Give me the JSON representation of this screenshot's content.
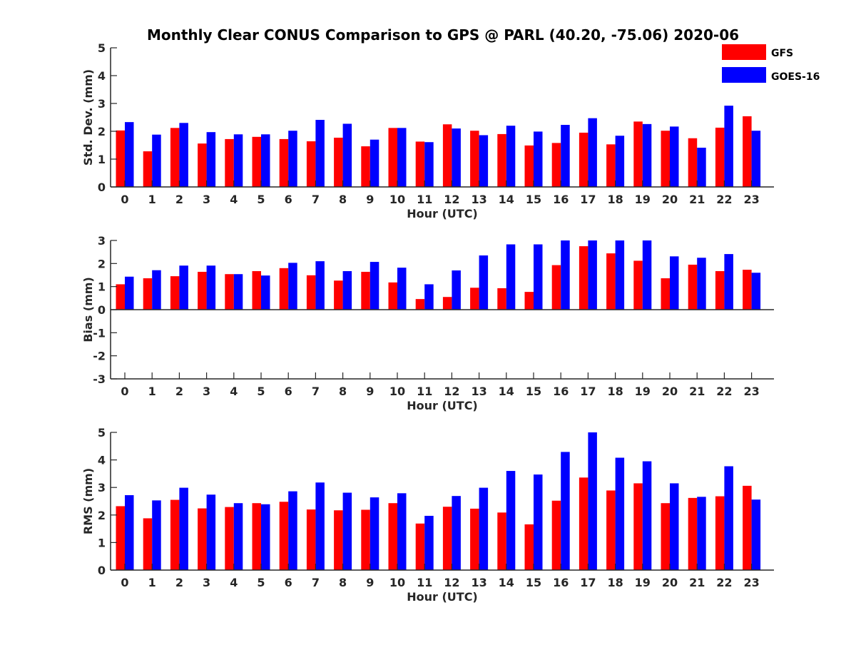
{
  "figure": {
    "title": "Monthly Clear CONUS Comparison to GPS @ PARL (40.20, -75.06) 2020-06"
  },
  "legend": {
    "placement": "top-right",
    "entries": [
      {
        "name": "GFS",
        "color": "#ff0000"
      },
      {
        "name": "GOES-16",
        "color": "#0000ff"
      }
    ]
  },
  "chart_data": [
    {
      "type": "bar",
      "xlabel": "Hour (UTC)",
      "ylabel": "Std. Dev. (mm)",
      "ylim": [
        0,
        5
      ],
      "yticks": [
        0,
        1,
        2,
        3,
        4,
        5
      ],
      "categories": [
        "0",
        "1",
        "2",
        "3",
        "4",
        "5",
        "6",
        "7",
        "8",
        "9",
        "10",
        "11",
        "12",
        "13",
        "14",
        "15",
        "16",
        "17",
        "18",
        "19",
        "20",
        "21",
        "22",
        "23"
      ],
      "series": [
        {
          "name": "GFS",
          "color": "#ff0000",
          "values": [
            2.03,
            1.28,
            2.12,
            1.56,
            1.72,
            1.8,
            1.72,
            1.64,
            1.77,
            1.46,
            2.12,
            1.63,
            2.25,
            2.02,
            1.9,
            1.49,
            1.58,
            1.95,
            1.53,
            2.35,
            2.02,
            1.75,
            2.13,
            2.54
          ]
        },
        {
          "name": "GOES-16",
          "color": "#0000ff",
          "values": [
            2.33,
            1.88,
            2.3,
            1.97,
            1.89,
            1.89,
            2.02,
            2.41,
            2.27,
            1.7,
            2.12,
            1.61,
            2.1,
            1.86,
            2.2,
            1.99,
            2.23,
            2.47,
            1.84,
            2.26,
            2.17,
            1.41,
            2.92,
            2.02
          ]
        }
      ]
    },
    {
      "type": "bar",
      "xlabel": "Hour (UTC)",
      "ylabel": "Bias (mm)",
      "ylim": [
        -3,
        3
      ],
      "yticks": [
        -3,
        -2,
        -1,
        0,
        1,
        2,
        3
      ],
      "categories": [
        "0",
        "1",
        "2",
        "3",
        "4",
        "5",
        "6",
        "7",
        "8",
        "9",
        "10",
        "11",
        "12",
        "13",
        "14",
        "15",
        "16",
        "17",
        "18",
        "19",
        "20",
        "21",
        "22",
        "23"
      ],
      "series": [
        {
          "name": "GFS",
          "color": "#ff0000",
          "values": [
            1.1,
            1.36,
            1.45,
            1.64,
            1.54,
            1.67,
            1.8,
            1.49,
            1.26,
            1.64,
            1.18,
            0.46,
            0.55,
            0.95,
            0.93,
            0.77,
            1.93,
            2.75,
            2.44,
            2.12,
            1.36,
            1.95,
            1.67,
            1.73
          ]
        },
        {
          "name": "GOES-16",
          "color": "#0000ff",
          "values": [
            1.43,
            1.71,
            1.91,
            1.91,
            1.54,
            1.48,
            2.03,
            2.1,
            1.67,
            2.07,
            1.82,
            1.1,
            1.7,
            2.35,
            2.83,
            2.83,
            3.0,
            3.0,
            3.0,
            3.0,
            2.31,
            2.25,
            2.41,
            1.6
          ]
        }
      ]
    },
    {
      "type": "bar",
      "xlabel": "Hour (UTC)",
      "ylabel": "RMS (mm)",
      "ylim": [
        0,
        5
      ],
      "yticks": [
        0,
        1,
        2,
        3,
        4,
        5
      ],
      "categories": [
        "0",
        "1",
        "2",
        "3",
        "4",
        "5",
        "6",
        "7",
        "8",
        "9",
        "10",
        "11",
        "12",
        "13",
        "14",
        "15",
        "16",
        "17",
        "18",
        "19",
        "20",
        "21",
        "22",
        "23"
      ],
      "series": [
        {
          "name": "GFS",
          "color": "#ff0000",
          "values": [
            2.32,
            1.88,
            2.55,
            2.24,
            2.29,
            2.43,
            2.48,
            2.2,
            2.17,
            2.19,
            2.43,
            1.69,
            2.3,
            2.23,
            2.09,
            1.66,
            2.52,
            3.36,
            2.89,
            3.15,
            2.43,
            2.62,
            2.68,
            3.06
          ]
        },
        {
          "name": "GOES-16",
          "color": "#0000ff",
          "values": [
            2.72,
            2.53,
            2.99,
            2.74,
            2.43,
            2.39,
            2.86,
            3.18,
            2.81,
            2.64,
            2.79,
            1.97,
            2.69,
            2.99,
            3.6,
            3.47,
            4.29,
            5.0,
            4.08,
            3.95,
            3.15,
            2.66,
            3.77,
            2.56
          ]
        }
      ]
    }
  ]
}
